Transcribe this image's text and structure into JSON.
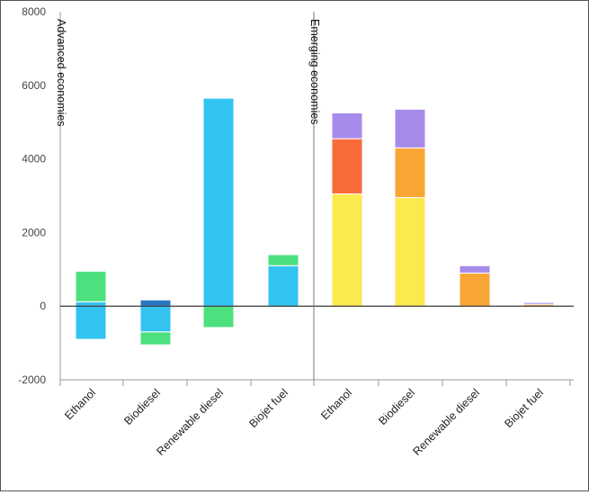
{
  "chart_data": {
    "type": "bar",
    "stacked": true,
    "title": "",
    "xlabel": "",
    "ylabel": "",
    "ylim": [
      -2000,
      8000
    ],
    "yticks": [
      -2000,
      0,
      2000,
      4000,
      6000,
      8000
    ],
    "grid": false,
    "legend": "none",
    "colors": {
      "blue": "#33c3f0",
      "dark_blue": "#2a78c4",
      "green": "#4de07f",
      "yellow": "#fce94f",
      "red_orange": "#f96a39",
      "orange": "#f8a634",
      "purple": "#a78bea",
      "baseline": "#222222",
      "axis": "#999999",
      "divider": "#777777"
    },
    "groups": [
      {
        "label": "Advanced economies",
        "categories": [
          {
            "label": "Ethanol",
            "segments": [
              {
                "color": "blue",
                "from": 0,
                "to": 120
              },
              {
                "color": "green",
                "from": 120,
                "to": 950
              },
              {
                "color": "blue",
                "from": -900,
                "to": 0
              }
            ]
          },
          {
            "label": "Biodiesel",
            "segments": [
              {
                "color": "dark_blue",
                "from": 0,
                "to": 170
              },
              {
                "color": "blue",
                "from": -700,
                "to": 0
              },
              {
                "color": "green",
                "from": -1050,
                "to": -700
              }
            ]
          },
          {
            "label": "Renewable diesel",
            "segments": [
              {
                "color": "blue",
                "from": 0,
                "to": 5650
              },
              {
                "color": "green",
                "from": -580,
                "to": 0
              }
            ]
          },
          {
            "label": "Biojet fuel",
            "segments": [
              {
                "color": "blue",
                "from": 0,
                "to": 1100
              },
              {
                "color": "green",
                "from": 1100,
                "to": 1400
              }
            ]
          }
        ]
      },
      {
        "label": "Emerging economies",
        "categories": [
          {
            "label": "Ethanol",
            "segments": [
              {
                "color": "yellow",
                "from": 0,
                "to": 3050
              },
              {
                "color": "red_orange",
                "from": 3050,
                "to": 4550
              },
              {
                "color": "purple",
                "from": 4550,
                "to": 5250
              }
            ]
          },
          {
            "label": "Biodiesel",
            "segments": [
              {
                "color": "yellow",
                "from": 0,
                "to": 2950
              },
              {
                "color": "orange",
                "from": 2950,
                "to": 4300
              },
              {
                "color": "purple",
                "from": 4300,
                "to": 5350
              }
            ]
          },
          {
            "label": "Renewable diesel",
            "segments": [
              {
                "color": "orange",
                "from": 0,
                "to": 900
              },
              {
                "color": "purple",
                "from": 900,
                "to": 1100
              }
            ]
          },
          {
            "label": "Biojet fuel",
            "segments": [
              {
                "color": "orange",
                "from": 0,
                "to": 50
              },
              {
                "color": "purple",
                "from": 50,
                "to": 100
              }
            ]
          }
        ]
      }
    ]
  }
}
